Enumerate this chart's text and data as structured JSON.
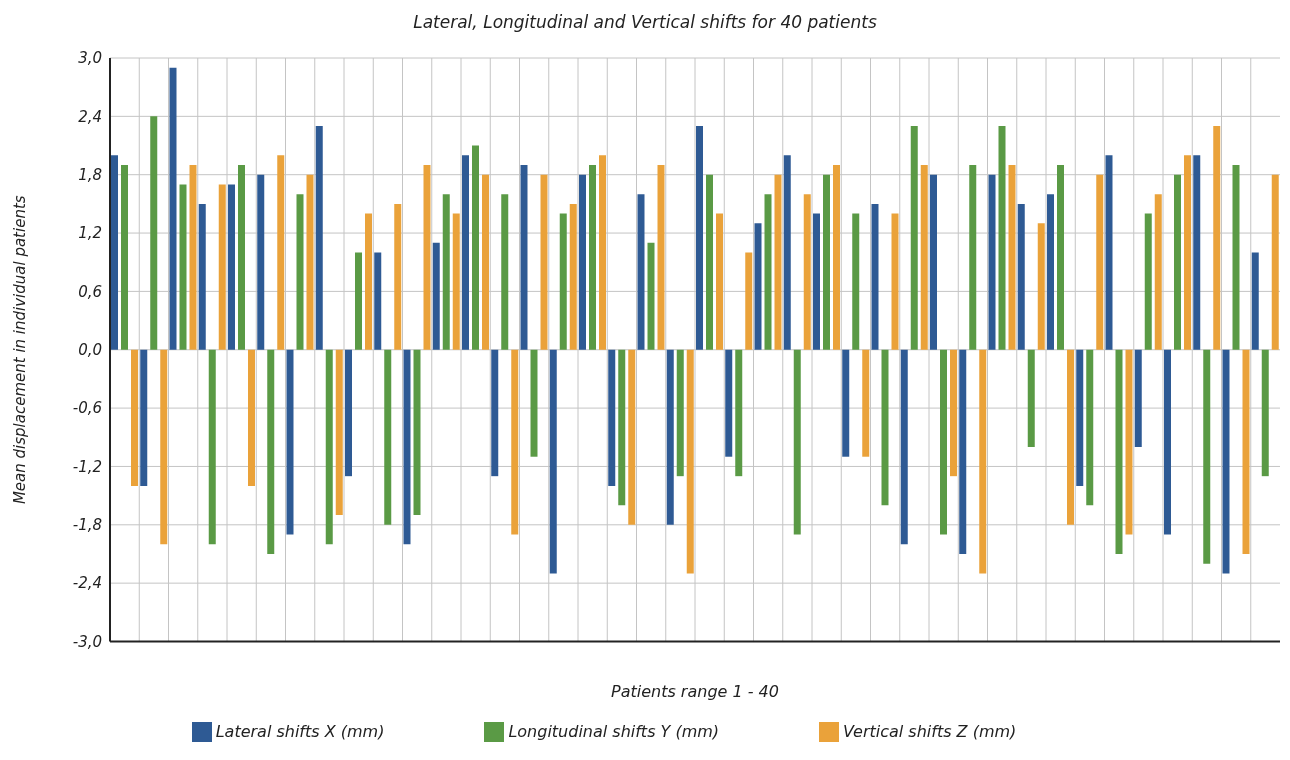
{
  "chart_data": {
    "type": "bar",
    "title": "Lateral, Longitudinal and Vertical shifts for 40 patients",
    "xlabel": "Patients range 1 - 40",
    "ylabel": "Mean displacement in individual patients",
    "categories": [
      null,
      null,
      null,
      null,
      null,
      null,
      null,
      null,
      null,
      null,
      null,
      null,
      null,
      null,
      null,
      null,
      null,
      null,
      null,
      null,
      null,
      null,
      null,
      null,
      null,
      null,
      null,
      null,
      null,
      null,
      null,
      null,
      null,
      null,
      null,
      null,
      null,
      null,
      null,
      null
    ],
    "series": [
      {
        "name": "Lateral shifts X (mm)",
        "color": "#2e5a94",
        "values": [
          2.0,
          -1.4,
          2.9,
          1.5,
          1.7,
          1.8,
          -1.9,
          2.3,
          -1.3,
          1.0,
          -2.0,
          1.1,
          2.0,
          -1.3,
          1.9,
          -2.3,
          1.8,
          -1.4,
          1.6,
          -1.8,
          2.3,
          -1.1,
          1.3,
          2.0,
          1.4,
          -1.1,
          1.5,
          -2.0,
          1.8,
          -2.1,
          1.8,
          1.5,
          1.6,
          -1.4,
          2.0,
          -1.0,
          -1.9,
          2.0,
          -2.3,
          1.0
        ]
      },
      {
        "name": "Longitudinal shifts Y (mm)",
        "color": "#5a9a45",
        "values": [
          1.9,
          2.4,
          1.7,
          -2.0,
          1.9,
          -2.1,
          1.6,
          -2.0,
          1.0,
          -1.8,
          -1.7,
          1.6,
          2.1,
          1.6,
          -1.1,
          1.4,
          1.9,
          -1.6,
          1.1,
          -1.3,
          1.8,
          -1.3,
          1.6,
          -1.9,
          1.8,
          1.4,
          -1.6,
          2.3,
          -1.9,
          1.9,
          2.3,
          -1.0,
          1.9,
          -1.6,
          -2.1,
          1.4,
          1.8,
          -2.2,
          1.9,
          -1.3
        ]
      },
      {
        "name": "Vertical shifts Z (mm)",
        "color": "#eaa23a",
        "values": [
          -1.4,
          -2.0,
          1.9,
          1.7,
          -1.4,
          2.0,
          1.8,
          -1.7,
          1.4,
          1.5,
          1.9,
          1.4,
          1.8,
          -1.9,
          1.8,
          1.5,
          2.0,
          -1.8,
          1.9,
          -2.3,
          1.4,
          1.0,
          1.8,
          1.6,
          1.9,
          -1.1,
          1.4,
          1.9,
          -1.3,
          -2.3,
          1.9,
          1.3,
          -1.8,
          1.8,
          -1.9,
          1.6,
          2.0,
          2.3,
          -2.1,
          1.8
        ]
      }
    ],
    "ylim": [
      -3.0,
      3.0
    ],
    "yticks": [
      {
        "value": -3.0,
        "label": "-3,0"
      },
      {
        "value": -2.4,
        "label": "-2,4"
      },
      {
        "value": -1.8,
        "label": "-1,8"
      },
      {
        "value": -1.2,
        "label": "-1,2"
      },
      {
        "value": -0.6,
        "label": "-0,6"
      },
      {
        "value": 0,
        "label": "0,0"
      },
      {
        "value": 0.6,
        "label": "0,6"
      },
      {
        "value": 1.2,
        "label": "1,2"
      },
      {
        "value": 1.8,
        "label": "1,8"
      },
      {
        "value": 2.4,
        "label": "2,4"
      },
      {
        "value": 3.0,
        "label": "3,0"
      }
    ],
    "tick_labels": "y",
    "grid": true,
    "legend": "bottom"
  }
}
